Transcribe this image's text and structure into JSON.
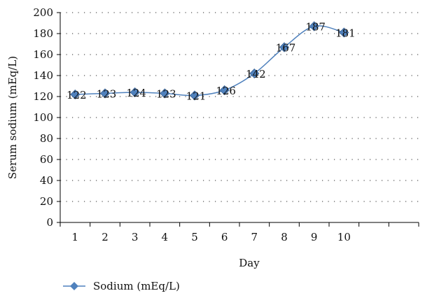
{
  "chart_data": {
    "type": "line",
    "title": "",
    "xlabel": "Day",
    "ylabel": "Serum sodium (mEq/L)",
    "ylim": [
      0,
      200
    ],
    "yticks": [
      0,
      20,
      40,
      60,
      80,
      100,
      120,
      140,
      160,
      180,
      200
    ],
    "categories": [
      "1",
      "2",
      "3",
      "4",
      "5",
      "6",
      "7",
      "8",
      "9",
      "10"
    ],
    "category_slots": 12,
    "grid": "horizontal-dotted",
    "legend_position": "bottom-left",
    "series": [
      {
        "name": "Sodium (mEq/L)",
        "values": [
          122,
          123,
          124,
          123,
          121,
          126,
          142,
          167,
          187,
          181
        ],
        "color": "#4f81bd",
        "marker": "diamond",
        "data_labels": [
          "122",
          "123",
          "124",
          "123",
          "121",
          "126",
          "142",
          "167",
          "187",
          "181"
        ]
      }
    ]
  }
}
